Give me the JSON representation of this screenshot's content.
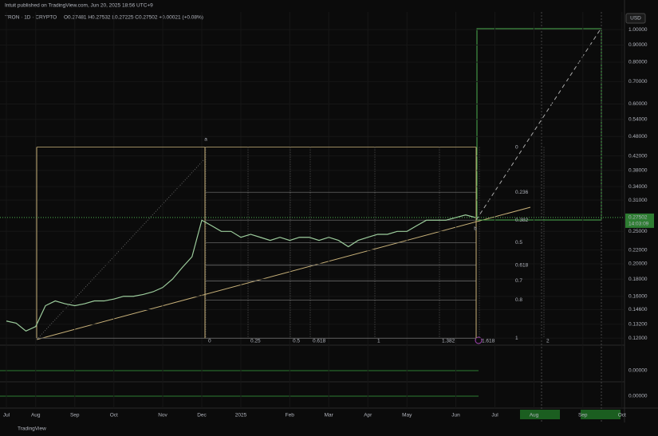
{
  "header": {
    "publisher": "Intuit published on TradingView.com, Jun 20, 2025 18:56 UTC+9",
    "symbol": "TRON · 1D · CRYPTO",
    "ohlc": "O0.27481 H0.27532 L0.27225 C0.27502 +0.00021 (+0.08%)",
    "currency": "USD",
    "countdown": "14:03:09",
    "brand": "TradingView"
  },
  "chart_data": {
    "type": "line",
    "log_scale": true,
    "grid": true,
    "categories": [
      "Jul",
      null,
      null,
      "Aug",
      null,
      null,
      null,
      "Sep",
      null,
      null,
      null,
      "Oct",
      null,
      null,
      null,
      null,
      "Nov",
      null,
      null,
      null,
      "Dec",
      null,
      null,
      null,
      "2025",
      null,
      null,
      null,
      null,
      "Feb",
      null,
      null,
      null,
      "Mar",
      null,
      null,
      null,
      "Apr",
      null,
      null,
      null,
      "May",
      null,
      null,
      null,
      null,
      "Jun",
      null,
      null,
      null,
      "Jul",
      null,
      null,
      null,
      "Aug",
      null,
      null,
      null,
      null,
      "Sep",
      null,
      null,
      null,
      "Oct"
    ],
    "series": [
      {
        "name": "TRON",
        "color": "#9ccc9c",
        "values": [
          0.135,
          0.133,
          0.126,
          0.13,
          0.15,
          0.155,
          0.152,
          0.15,
          0.152,
          0.155,
          0.155,
          0.157,
          0.16,
          0.16,
          0.162,
          0.165,
          0.17,
          0.18,
          0.195,
          0.21,
          0.27,
          0.26,
          0.25,
          0.25,
          0.24,
          0.245,
          0.24,
          0.235,
          0.24,
          0.235,
          0.24,
          0.24,
          0.235,
          0.24,
          0.235,
          0.225,
          0.235,
          0.24,
          0.245,
          0.245,
          0.25,
          0.25,
          0.26,
          0.27,
          0.27,
          0.27,
          0.275,
          0.28,
          0.27502,
          null,
          null,
          null,
          null,
          null,
          null,
          null,
          null,
          null,
          null,
          null,
          null,
          null,
          null,
          null
        ]
      }
    ],
    "last_price": 0.27502,
    "ylim": [
      0.115,
      1.13
    ],
    "yticks": [
      {
        "value": 0.12,
        "label": "0.12000"
      },
      {
        "value": 0.132,
        "label": "0.13200"
      },
      {
        "value": 0.146,
        "label": "0.14600"
      },
      {
        "value": 0.16,
        "label": "0.16000"
      },
      {
        "value": 0.18,
        "label": "0.18000"
      },
      {
        "value": 0.2,
        "label": "0.20000"
      },
      {
        "value": 0.22,
        "label": "0.22000"
      },
      {
        "value": 0.25,
        "label": "0.25000"
      },
      {
        "value": 0.31,
        "label": "0.31000"
      },
      {
        "value": 0.34,
        "label": "0.34000"
      },
      {
        "value": 0.38,
        "label": "0.38000"
      },
      {
        "value": 0.42,
        "label": "0.42000"
      },
      {
        "value": 0.48,
        "label": "0.48000"
      },
      {
        "value": 0.54,
        "label": "0.54000"
      },
      {
        "value": 0.6,
        "label": "0.60000"
      },
      {
        "value": 0.7,
        "label": "0.70000"
      },
      {
        "value": 0.8,
        "label": "0.80000"
      },
      {
        "value": 0.9,
        "label": "0.90000"
      },
      {
        "value": 1.0,
        "label": "1.00000"
      }
    ],
    "fib": {
      "high": 0.446,
      "low": 0.12,
      "levels": [
        0,
        0.236,
        0.382,
        0.5,
        0.618,
        0.7,
        0.8,
        1
      ]
    },
    "time_fib": [
      0,
      0.25,
      0.5,
      0.618,
      1,
      1.382,
      1.618,
      2
    ],
    "points": [
      "a",
      "b"
    ],
    "indicator_ticks": [
      {
        "value": 0,
        "label": "0.00000"
      },
      {
        "value": 0,
        "label": "0.00000"
      }
    ]
  }
}
